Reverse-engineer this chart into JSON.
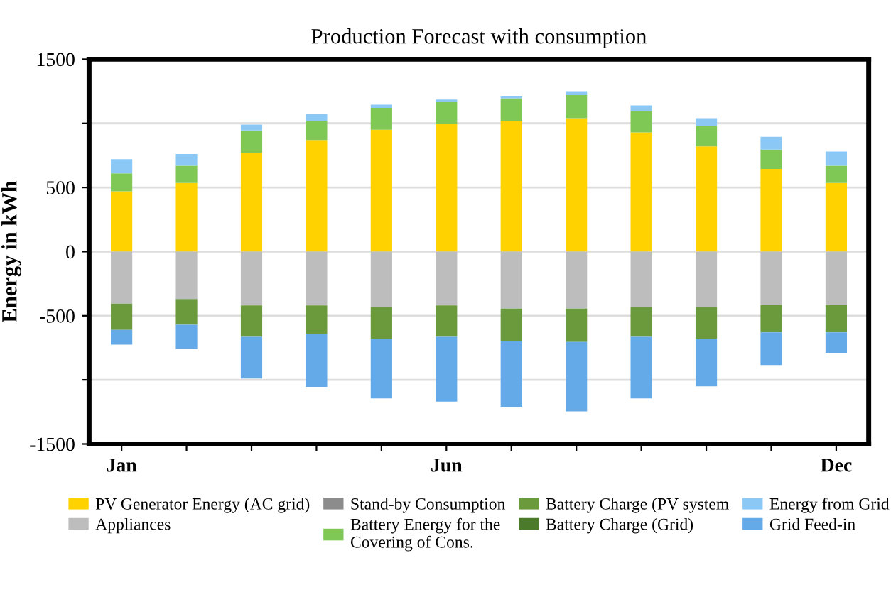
{
  "chart_data": {
    "type": "bar",
    "title": "Production Forecast with consumption",
    "ylabel": "Energy in kWh",
    "stacked": true,
    "grid": "y",
    "legend": "bottom",
    "categories": [
      "Jan",
      null,
      null,
      null,
      null,
      "Jun",
      null,
      null,
      null,
      null,
      null,
      "Dec"
    ],
    "ylim": [
      -1500,
      1500
    ],
    "yticks": [
      -1500,
      {
        "value": -1000,
        "label": null
      },
      -500,
      0,
      500,
      {
        "value": 1000,
        "label": null
      },
      1500
    ],
    "series": [
      {
        "name": "PV Generator Energy (AC grid)",
        "color": "#ffd200",
        "values": [
          470,
          535,
          770,
          870,
          950,
          995,
          1020,
          1040,
          930,
          820,
          645,
          535
        ]
      },
      {
        "name": "Appliances",
        "color": "#bdbdbd",
        "values": [
          -405,
          -370,
          -420,
          -420,
          -430,
          -420,
          -445,
          -445,
          -430,
          -430,
          -415,
          -415
        ]
      },
      {
        "name": "Stand-by Consumption",
        "color": "#8c8c8c",
        "values": [
          null,
          null,
          null,
          null,
          null,
          null,
          null,
          null,
          null,
          null,
          null,
          null
        ]
      },
      {
        "name": "Battery Energy for the\nCovering of Cons.",
        "color": "#80c855",
        "values": [
          140,
          135,
          175,
          150,
          170,
          170,
          175,
          180,
          165,
          160,
          150,
          135
        ]
      },
      {
        "name": "Battery Charge (PV system",
        "color": "#6a9a3c",
        "values": [
          -205,
          -200,
          -245,
          -220,
          -250,
          -245,
          -255,
          -260,
          -235,
          -250,
          -215,
          -215
        ]
      },
      {
        "name": "Battery Charge (Grid)",
        "color": "#4a7a2a",
        "values": [
          null,
          null,
          null,
          null,
          null,
          null,
          null,
          null,
          null,
          null,
          null,
          null
        ]
      },
      {
        "name": "Energy from Grid",
        "color": "#8cc8f5",
        "values": [
          110,
          90,
          45,
          55,
          25,
          20,
          20,
          30,
          45,
          60,
          100,
          110
        ]
      },
      {
        "name": "Grid Feed-in",
        "color": "#64aae8",
        "values": [
          -115,
          -190,
          -325,
          -415,
          -465,
          -505,
          -510,
          -540,
          -480,
          -370,
          -255,
          -160
        ]
      }
    ]
  }
}
